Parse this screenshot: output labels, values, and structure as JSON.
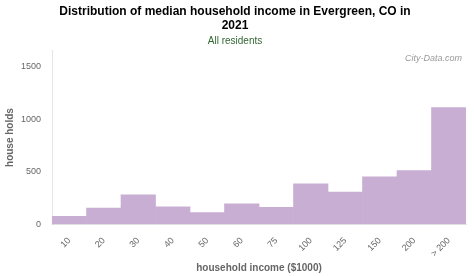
{
  "chart_data": {
    "type": "bar",
    "title": "Distribution of median household income in Evergreen, CO in\n2021",
    "subtitle": "All residents",
    "xlabel": "household income ($1000)",
    "ylabel": "house holds",
    "annotations": [
      "City-Data.com"
    ],
    "categories": [
      "10",
      "20",
      "30",
      "40",
      "50",
      "60",
      "75",
      "100",
      "125",
      "150",
      "200",
      "> 200"
    ],
    "values": [
      75,
      155,
      280,
      165,
      110,
      195,
      160,
      385,
      305,
      450,
      510,
      1110
    ],
    "color": "#c9aed4",
    "ylim": [
      0,
      1650
    ],
    "yticks": [
      0,
      500,
      1000,
      1500
    ],
    "grid": false
  }
}
